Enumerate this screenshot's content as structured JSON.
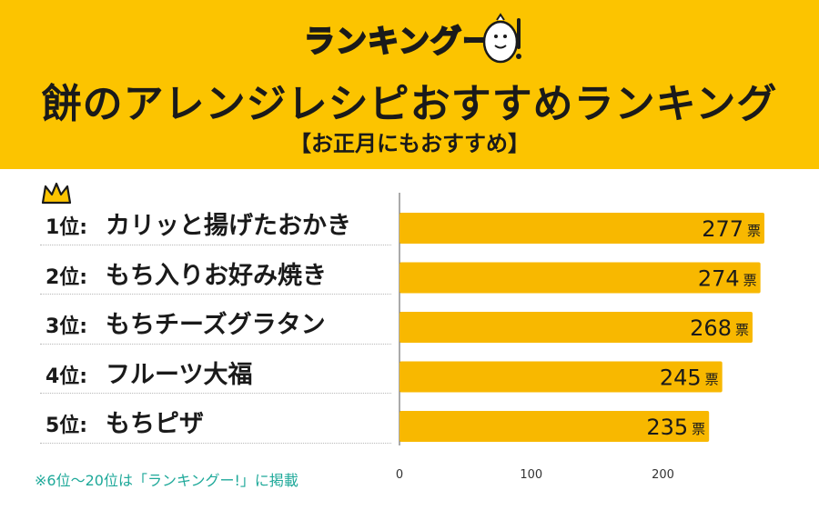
{
  "header": {
    "logo_text": "ランキングー!",
    "title": "餅のアレンジレシピおすすめランキング",
    "subtitle": "【お正月にもおすすめ】"
  },
  "colors": {
    "header_bg": "#fcc400",
    "bar": "#f8b800",
    "text": "#1a1a1a",
    "footnote": "#1fa99a"
  },
  "chart_data": {
    "type": "bar",
    "orientation": "horizontal",
    "categories": [
      "カリッと揚げたおかき",
      "もち入りお好み焼き",
      "もちチーズグラタン",
      "フルーツ大福",
      "もちピザ"
    ],
    "ranks": [
      "1位:",
      "2位:",
      "3位:",
      "4位:",
      "5位:"
    ],
    "values": [
      277,
      274,
      268,
      245,
      235
    ],
    "value_labels": [
      "277",
      "274",
      "268",
      "245",
      "235"
    ],
    "unit": "票",
    "xlim": [
      0,
      277
    ],
    "xticks": [
      0,
      100,
      200
    ],
    "xtick_labels": [
      "0",
      "100",
      "200"
    ],
    "grid": false
  },
  "footnote": "※6位〜20位は「ランキングー!」に掲載"
}
